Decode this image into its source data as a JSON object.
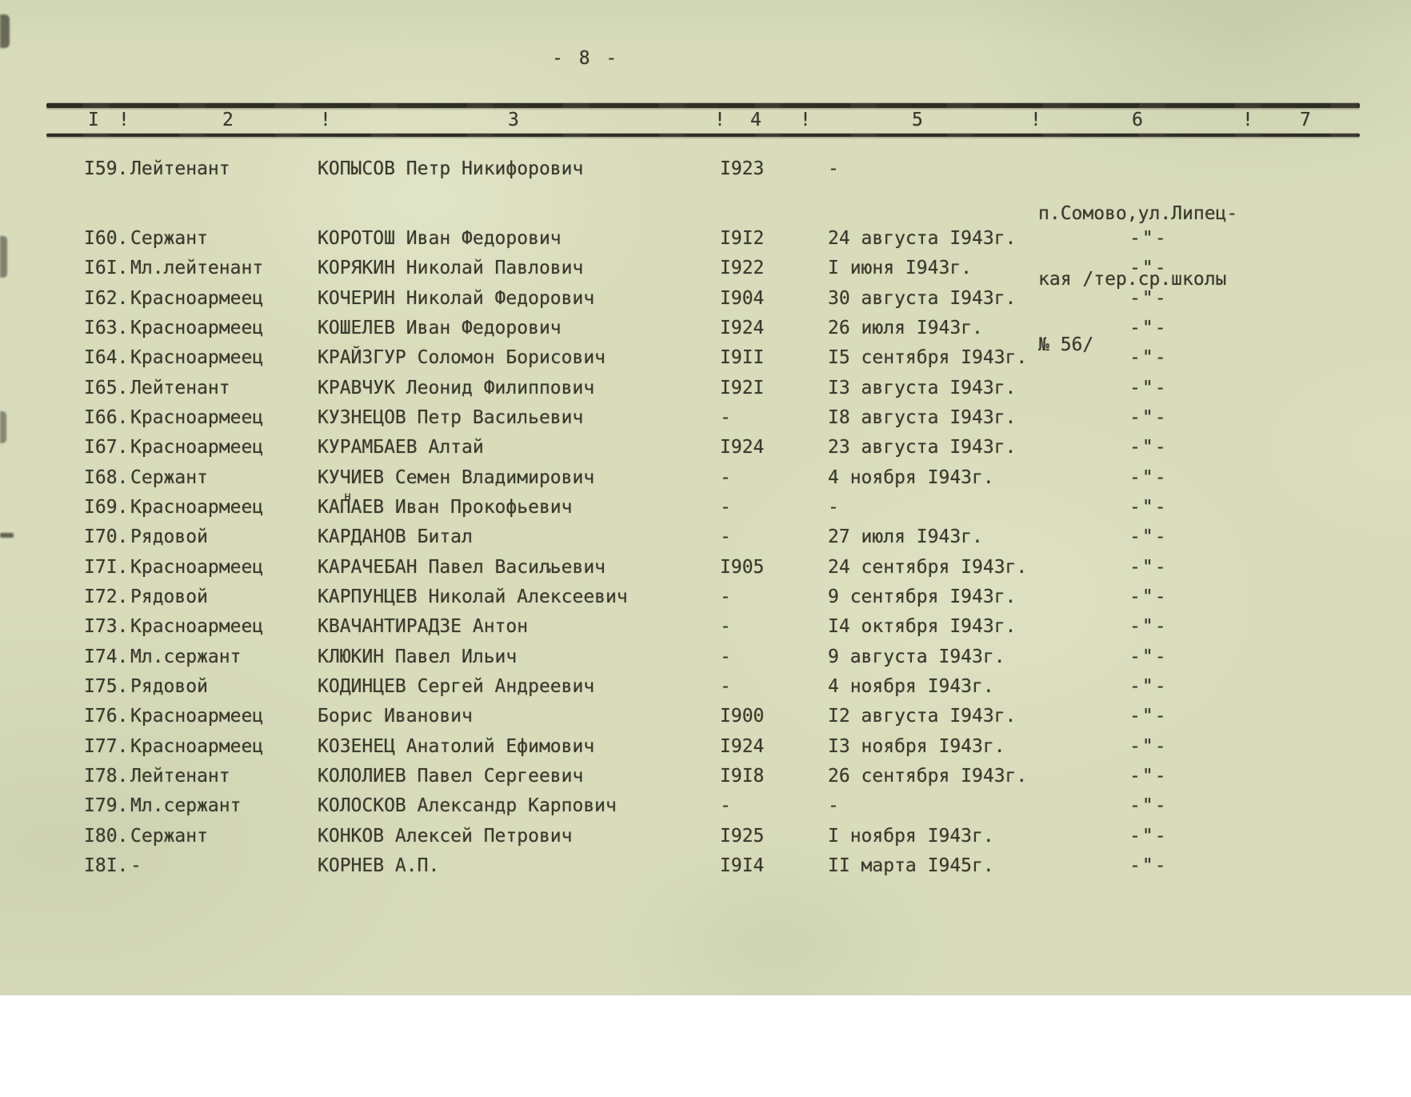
{
  "page": {
    "number_label": "- 8 -"
  },
  "table": {
    "header": [
      "I",
      "!",
      "2",
      "!",
      "3",
      "!",
      "4",
      "!",
      "5",
      "!",
      "6",
      "!",
      "7"
    ],
    "ditto_mark": "-\"-",
    "rows": [
      {
        "num": "I59.",
        "rank": "Лейтенант",
        "name": "КОПЫСОВ Петр Никифорович",
        "year": "I923",
        "date": "-",
        "address_lines": [
          "п.Сомово,ул.Липец-",
          "кая /тер.ср.школы",
          "№ 56/"
        ]
      },
      {
        "num": "I60.",
        "rank": "Сержант",
        "name": "КОРОТОШ Иван Федорович",
        "year": "I9I2",
        "date": "24 августа I943г.",
        "ditto": "-\"-"
      },
      {
        "num": "I6I.",
        "rank": "Мл.лейтенант",
        "name": "КОРЯКИН Николай Павлович",
        "year": "I922",
        "date": "I июня I943г.",
        "ditto": "-\"-"
      },
      {
        "num": "I62.",
        "rank": "Красноармеец",
        "name": "КОЧЕРИН Николай Федорович",
        "year": "I904",
        "date": "30 августа I943г.",
        "ditto": "-\"-"
      },
      {
        "num": "I63.",
        "rank": "Красноармеец",
        "name": "КОШЕЛЕВ Иван Федорович",
        "year": "I924",
        "date": "26 июля I943г.",
        "ditto": "-\"-"
      },
      {
        "num": "I64.",
        "rank": "Красноармеец",
        "name": "КРАЙЗГУР Соломон Борисович",
        "year": "I9II",
        "date": "I5 сентября I943г.",
        "ditto": "-\"-"
      },
      {
        "num": "I65.",
        "rank": "Лейтенант",
        "name": "КРАВЧУК Леонид Филиппович",
        "year": "I92I",
        "date": "I3 августа I943г.",
        "ditto": "-\"-"
      },
      {
        "num": "I66.",
        "rank": "Красноармеец",
        "name": "КУЗНЕЦОВ Петр Васильевич",
        "year": "-",
        "date": "I8 августа I943г.",
        "ditto": "-\"-"
      },
      {
        "num": "I67.",
        "rank": "Красноармеец",
        "name": "КУРАМБАЕВ Алтай",
        "year": "I924",
        "date": "23 августа I943г.",
        "ditto": "-\"-"
      },
      {
        "num": "I68.",
        "rank": "Сержант",
        "name": "КУЧИЕВ Семен Владимирович",
        "year": "-",
        "date": "4 ноября I943г.",
        "ditto": "-\"-"
      },
      {
        "num": "I69.",
        "rank": "Красноармеец",
        "name": "КАПАЕВ Иван Прокофьевич",
        "sup": "н",
        "year": "-",
        "date": "-",
        "ditto": "-\"-"
      },
      {
        "num": "I70.",
        "rank": "Рядовой",
        "name": "КАРДАНОВ Битал",
        "year": "-",
        "date": "27 июля I943г.",
        "ditto": "-\"-"
      },
      {
        "num": "I7I.",
        "rank": "Красноармеец",
        "name": "КАРАЧЕБАН Павел Васильевич",
        "year": "I905",
        "date": "24 сентября I943г.",
        "ditto": "-\"-"
      },
      {
        "num": "I72.",
        "rank": "Рядовой",
        "name": "КАРПУНЦЕВ Николай Алексеевич",
        "year": "-",
        "date": "9 сентября I943г.",
        "ditto": "-\"-"
      },
      {
        "num": "I73.",
        "rank": "Красноармеец",
        "name": "КВАЧАНТИРАДЗЕ Антон",
        "year": "-",
        "date": "I4 октября I943г.",
        "ditto": "-\"-"
      },
      {
        "num": "I74.",
        "rank": "Мл.сержант",
        "name": "КЛЮКИН Павел Ильич",
        "year": "-",
        "date": "9 августа I943г.",
        "ditto": "-\"-"
      },
      {
        "num": "I75.",
        "rank": "Рядовой",
        "name": "КОДИНЦЕВ Сергей Андреевич",
        "year": "-",
        "date": "4 ноября I943г.",
        "ditto": "-\"-"
      },
      {
        "num": "I76.",
        "rank": "Красноармеец",
        "name": "Борис Иванович",
        "year": "I900",
        "date": "I2 августа I943г.",
        "ditto": "-\"-"
      },
      {
        "num": "I77.",
        "rank": "Красноармеец",
        "name": "КОЗЕНЕЦ Анатолий Ефимович",
        "year": "I924",
        "date": "I3 ноября I943г.",
        "ditto": "-\"-"
      },
      {
        "num": "I78.",
        "rank": "Лейтенант",
        "name": "КОЛОЛИЕВ Павел Сергеевич",
        "year": "I9I8",
        "date": "26 сентября I943г.",
        "ditto": "-\"-"
      },
      {
        "num": "I79.",
        "rank": "Мл.сержант",
        "name": "КОЛОСКОВ Александр Карпович",
        "year": "-",
        "date": "-",
        "ditto": "-\"-"
      },
      {
        "num": "I80.",
        "rank": "Сержант",
        "name": "КОНКОВ Алексей Петрович",
        "year": "I925",
        "date": "I ноября I943г.",
        "ditto": "-\"-"
      },
      {
        "num": "I8I.",
        "rank": "-",
        "name": "КОРНЕВ А.П.",
        "year": "I9I4",
        "date": "II марта I945г.",
        "ditto": "-\"-"
      }
    ]
  }
}
